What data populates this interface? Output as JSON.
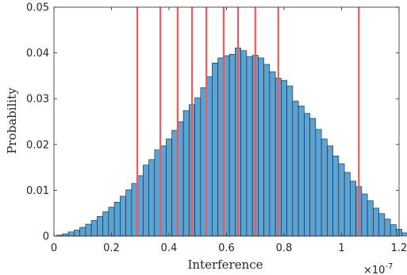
{
  "chart_data": {
    "type": "bar",
    "subtype": "histogram",
    "xlabel": "Interference",
    "ylabel": "Probability",
    "x_multiplier_label": "×10",
    "x_multiplier_exponent": "-7",
    "xlim": [
      0,
      1.2
    ],
    "ylim": [
      0,
      0.05
    ],
    "xticks": [
      "0",
      "0.2",
      "0.4",
      "0.6",
      "0.8",
      "1",
      "1.2"
    ],
    "yticks": [
      "0",
      "0.01",
      "0.02",
      "0.03",
      "0.04",
      "0.05"
    ],
    "bin_start": 0.01,
    "bin_width": 0.02,
    "values": [
      0.0002,
      0.0005,
      0.0009,
      0.0013,
      0.0019,
      0.0026,
      0.0034,
      0.0043,
      0.0053,
      0.0063,
      0.0074,
      0.0087,
      0.0101,
      0.0115,
      0.0132,
      0.0155,
      0.0167,
      0.0188,
      0.0197,
      0.0212,
      0.0231,
      0.025,
      0.0274,
      0.0287,
      0.0302,
      0.0324,
      0.0348,
      0.0378,
      0.0389,
      0.0394,
      0.0397,
      0.0411,
      0.0405,
      0.0392,
      0.0395,
      0.0389,
      0.0375,
      0.0359,
      0.0345,
      0.034,
      0.0328,
      0.0295,
      0.0284,
      0.0268,
      0.0257,
      0.0233,
      0.0212,
      0.0197,
      0.0175,
      0.0158,
      0.0139,
      0.012,
      0.0108,
      0.0092,
      0.0077,
      0.0061,
      0.0049,
      0.0037,
      0.0025,
      0.0015,
      0.0007,
      0.0003
    ],
    "vlines": [
      0.29,
      0.37,
      0.43,
      0.48,
      0.53,
      0.59,
      0.64,
      0.7,
      0.78,
      1.06
    ],
    "colors": {
      "bar_fill": "#5ba3d4",
      "bar_edge": "#1f1f1f",
      "vline": "#f05a5a",
      "axis": "#262626"
    },
    "grid": false,
    "legend": "none"
  }
}
